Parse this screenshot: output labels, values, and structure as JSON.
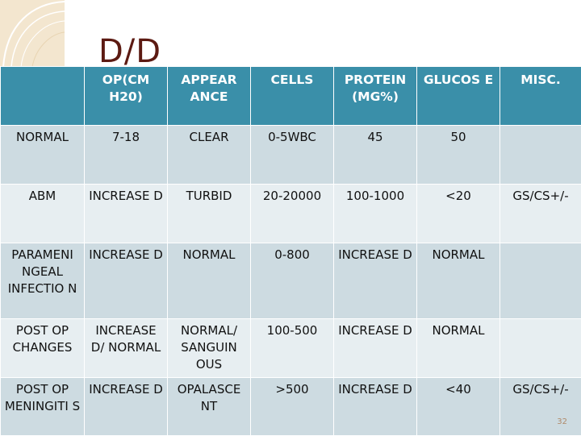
{
  "slide": {
    "title": "D/D",
    "page_number": "32"
  },
  "table": {
    "headers": [
      "",
      "OP(CM H20)",
      "APPEAR ANCE",
      "CELLS",
      "PROTEIN (MG%)",
      "GLUCOS E",
      "MISC."
    ],
    "rows": [
      [
        "NORMAL",
        "7-18",
        "CLEAR",
        "0-5WBC",
        "45",
        "50",
        ""
      ],
      [
        "ABM",
        "INCREASE D",
        "TURBID",
        "20-20000",
        "100-1000",
        "<20",
        "GS/CS+/-"
      ],
      [
        "PARAMENI NGEAL INFECTIO N",
        "INCREASE D",
        "NORMAL",
        "0-800",
        "INCREASE D",
        "NORMAL",
        ""
      ],
      [
        "POST OP CHANGES",
        "INCREASE D/ NORMAL",
        "NORMAL/ SANGUIN OUS",
        "100-500",
        "INCREASE D",
        "NORMAL",
        ""
      ],
      [
        "POST OP MENINGITI S",
        "INCREASE D",
        "OPALASCE NT",
        ">500",
        "INCREASE D",
        "<40",
        "GS/CS+/-"
      ]
    ]
  },
  "colors": {
    "header": "#3a8fa9",
    "row_dark": "#cddbe1",
    "row_light": "#e7eef1",
    "title": "#5c1a12",
    "corner": "#f3e6cf"
  }
}
